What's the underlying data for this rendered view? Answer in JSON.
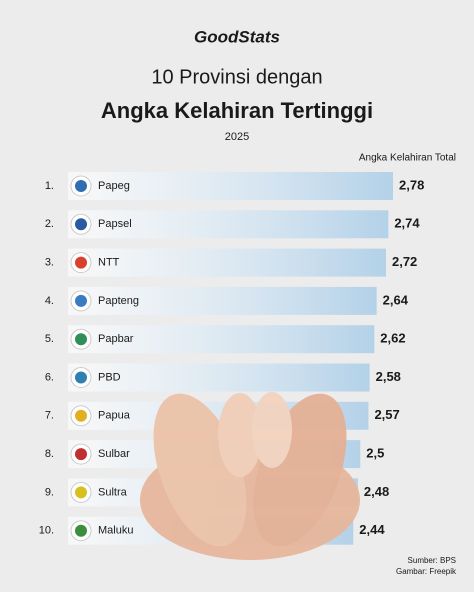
{
  "chart_data": {
    "type": "bar",
    "orientation": "horizontal",
    "logo": "GoodStats",
    "title": "10 Provinsi dengan",
    "subtitle": "Angka Kelahiran Tertinggi",
    "year": "2025",
    "value_axis_label": "Angka Kelahiran Total",
    "ranks": [
      "1.",
      "2.",
      "3.",
      "4.",
      "5.",
      "6.",
      "7.",
      "8.",
      "9.",
      "10."
    ],
    "categories": [
      "Papeg",
      "Papsel",
      "NTT",
      "Papteng",
      "Papbar",
      "PBD",
      "Papua",
      "Sulbar",
      "Sultra",
      "Maluku"
    ],
    "values": [
      2.78,
      2.74,
      2.72,
      2.64,
      2.62,
      2.58,
      2.57,
      2.5,
      2.48,
      2.44
    ],
    "value_labels": [
      "2,78",
      "2,74",
      "2,72",
      "2,64",
      "2,62",
      "2,58",
      "2,57",
      "2,5",
      "2,48",
      "2,44"
    ],
    "color": "#b3d1e8",
    "source": "Sumber: BPS",
    "image_credit": "Gambar: Freepik"
  }
}
